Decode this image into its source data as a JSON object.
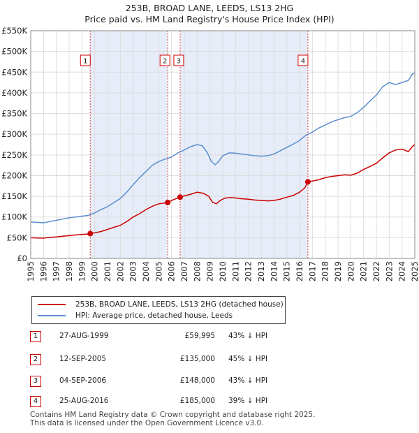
{
  "title": {
    "line1": "253B, BROAD LANE, LEEDS, LS13 2HG",
    "line2": "Price paid vs. HM Land Registry's House Price Index (HPI)"
  },
  "chart_data": {
    "type": "line",
    "xlim": [
      1995,
      2025
    ],
    "ylim": [
      0,
      550000
    ],
    "x_ticks": [
      1995,
      1996,
      1997,
      1998,
      1999,
      2000,
      2001,
      2002,
      2003,
      2004,
      2005,
      2006,
      2007,
      2008,
      2009,
      2010,
      2011,
      2012,
      2013,
      2014,
      2015,
      2016,
      2017,
      2018,
      2019,
      2020,
      2021,
      2022,
      2023,
      2024,
      2025
    ],
    "y_ticks": [
      {
        "value": 0,
        "label": "£0"
      },
      {
        "value": 50000,
        "label": "£50K"
      },
      {
        "value": 100000,
        "label": "£100K"
      },
      {
        "value": 150000,
        "label": "£150K"
      },
      {
        "value": 200000,
        "label": "£200K"
      },
      {
        "value": 250000,
        "label": "£250K"
      },
      {
        "value": 300000,
        "label": "£300K"
      },
      {
        "value": 350000,
        "label": "£350K"
      },
      {
        "value": 400000,
        "label": "£400K"
      },
      {
        "value": 450000,
        "label": "£450K"
      },
      {
        "value": 500000,
        "label": "£500K"
      },
      {
        "value": 550000,
        "label": "£550K"
      }
    ],
    "grid": true,
    "series": [
      {
        "name": "253B, BROAD LANE, LEEDS, LS13 2HG (detached house)",
        "color": "#cc0000",
        "points": [
          [
            1995.0,
            50000
          ],
          [
            1995.5,
            49500
          ],
          [
            1996.0,
            49000
          ],
          [
            1996.5,
            51000
          ],
          [
            1997.0,
            52000
          ],
          [
            1997.5,
            53500
          ],
          [
            1998.0,
            55000
          ],
          [
            1998.5,
            56500
          ],
          [
            1999.0,
            58000
          ],
          [
            1999.4,
            58500
          ],
          [
            1999.65,
            59995
          ],
          [
            2000.0,
            62000
          ],
          [
            2000.5,
            65000
          ],
          [
            2001.0,
            70000
          ],
          [
            2001.5,
            75000
          ],
          [
            2002.0,
            80000
          ],
          [
            2002.5,
            89000
          ],
          [
            2003.0,
            100000
          ],
          [
            2003.5,
            108000
          ],
          [
            2004.0,
            118000
          ],
          [
            2004.5,
            126000
          ],
          [
            2005.0,
            132000
          ],
          [
            2005.5,
            134000
          ],
          [
            2005.7,
            135000
          ],
          [
            2006.0,
            140000
          ],
          [
            2006.4,
            145000
          ],
          [
            2006.67,
            148000
          ],
          [
            2007.0,
            151000
          ],
          [
            2007.5,
            155000
          ],
          [
            2008.0,
            160000
          ],
          [
            2008.5,
            157000
          ],
          [
            2008.9,
            150000
          ],
          [
            2009.2,
            136000
          ],
          [
            2009.5,
            132000
          ],
          [
            2009.8,
            140000
          ],
          [
            2010.2,
            146000
          ],
          [
            2010.7,
            147000
          ],
          [
            2011.0,
            146000
          ],
          [
            2011.5,
            144000
          ],
          [
            2012.0,
            143000
          ],
          [
            2012.5,
            141000
          ],
          [
            2013.0,
            140000
          ],
          [
            2013.5,
            139000
          ],
          [
            2014.0,
            140000
          ],
          [
            2014.5,
            143000
          ],
          [
            2015.0,
            148000
          ],
          [
            2015.5,
            152000
          ],
          [
            2016.0,
            160000
          ],
          [
            2016.4,
            170000
          ],
          [
            2016.65,
            185000
          ],
          [
            2017.0,
            187000
          ],
          [
            2017.5,
            190000
          ],
          [
            2018.0,
            195000
          ],
          [
            2018.5,
            198000
          ],
          [
            2019.0,
            200000
          ],
          [
            2019.5,
            202000
          ],
          [
            2020.0,
            201000
          ],
          [
            2020.5,
            206000
          ],
          [
            2021.0,
            215000
          ],
          [
            2021.5,
            222000
          ],
          [
            2022.0,
            230000
          ],
          [
            2022.5,
            243000
          ],
          [
            2023.0,
            255000
          ],
          [
            2023.5,
            262000
          ],
          [
            2024.0,
            264000
          ],
          [
            2024.5,
            258000
          ],
          [
            2024.8,
            270000
          ],
          [
            2025.0,
            275000
          ]
        ]
      },
      {
        "name": "HPI: Average price, detached house, Leeds",
        "color": "#5b8fd0",
        "points": [
          [
            1995.0,
            88000
          ],
          [
            1995.5,
            87000
          ],
          [
            1996.0,
            86000
          ],
          [
            1996.5,
            89000
          ],
          [
            1997.0,
            92000
          ],
          [
            1997.5,
            95000
          ],
          [
            1998.0,
            98000
          ],
          [
            1998.5,
            100000
          ],
          [
            1999.0,
            102000
          ],
          [
            1999.5,
            104000
          ],
          [
            2000.0,
            110000
          ],
          [
            2000.5,
            118000
          ],
          [
            2001.0,
            125000
          ],
          [
            2001.5,
            135000
          ],
          [
            2002.0,
            145000
          ],
          [
            2002.5,
            160000
          ],
          [
            2003.0,
            178000
          ],
          [
            2003.5,
            195000
          ],
          [
            2004.0,
            210000
          ],
          [
            2004.5,
            225000
          ],
          [
            2005.0,
            234000
          ],
          [
            2005.5,
            240000
          ],
          [
            2006.0,
            245000
          ],
          [
            2006.5,
            255000
          ],
          [
            2007.0,
            262000
          ],
          [
            2007.5,
            270000
          ],
          [
            2008.0,
            275000
          ],
          [
            2008.4,
            272000
          ],
          [
            2008.8,
            255000
          ],
          [
            2009.1,
            235000
          ],
          [
            2009.4,
            226000
          ],
          [
            2009.7,
            235000
          ],
          [
            2010.0,
            248000
          ],
          [
            2010.5,
            255000
          ],
          [
            2011.0,
            254000
          ],
          [
            2011.5,
            252000
          ],
          [
            2012.0,
            250000
          ],
          [
            2012.5,
            248000
          ],
          [
            2013.0,
            247000
          ],
          [
            2013.5,
            248000
          ],
          [
            2014.0,
            252000
          ],
          [
            2014.5,
            260000
          ],
          [
            2015.0,
            268000
          ],
          [
            2015.5,
            276000
          ],
          [
            2016.0,
            285000
          ],
          [
            2016.5,
            298000
          ],
          [
            2017.0,
            305000
          ],
          [
            2017.5,
            315000
          ],
          [
            2018.0,
            322000
          ],
          [
            2018.5,
            330000
          ],
          [
            2019.0,
            335000
          ],
          [
            2019.5,
            340000
          ],
          [
            2020.0,
            343000
          ],
          [
            2020.5,
            352000
          ],
          [
            2021.0,
            365000
          ],
          [
            2021.5,
            380000
          ],
          [
            2022.0,
            395000
          ],
          [
            2022.5,
            415000
          ],
          [
            2023.0,
            425000
          ],
          [
            2023.5,
            420000
          ],
          [
            2024.0,
            425000
          ],
          [
            2024.5,
            430000
          ],
          [
            2024.8,
            445000
          ],
          [
            2025.0,
            448000
          ]
        ]
      }
    ],
    "shaded_ranges": [
      [
        1999.65,
        2005.7
      ],
      [
        2006.67,
        2016.65
      ]
    ],
    "sales": [
      {
        "label": "1",
        "x": 1999.65,
        "y": 59995
      },
      {
        "label": "2",
        "x": 2005.7,
        "y": 135000
      },
      {
        "label": "3",
        "x": 2006.67,
        "y": 148000
      },
      {
        "label": "4",
        "x": 2016.65,
        "y": 185000
      }
    ],
    "hatch_from": 2025
  },
  "legend": {
    "items": [
      {
        "label": "253B, BROAD LANE, LEEDS, LS13 2HG (detached house)",
        "color": "#cc0000"
      },
      {
        "label": "HPI: Average price, detached house, Leeds",
        "color": "#5b8fd0"
      }
    ]
  },
  "sales_table": [
    {
      "num": "1",
      "date": "27-AUG-1999",
      "price": "£59,995",
      "hpi": "43% ↓ HPI"
    },
    {
      "num": "2",
      "date": "12-SEP-2005",
      "price": "£135,000",
      "hpi": "45% ↓ HPI"
    },
    {
      "num": "3",
      "date": "04-SEP-2006",
      "price": "£148,000",
      "hpi": "43% ↓ HPI"
    },
    {
      "num": "4",
      "date": "25-AUG-2016",
      "price": "£185,000",
      "hpi": "39% ↓ HPI"
    }
  ],
  "footer": {
    "line1": "Contains HM Land Registry data © Crown copyright and database right 2025.",
    "line2": "This data is licensed under the Open Government Licence v3.0."
  }
}
